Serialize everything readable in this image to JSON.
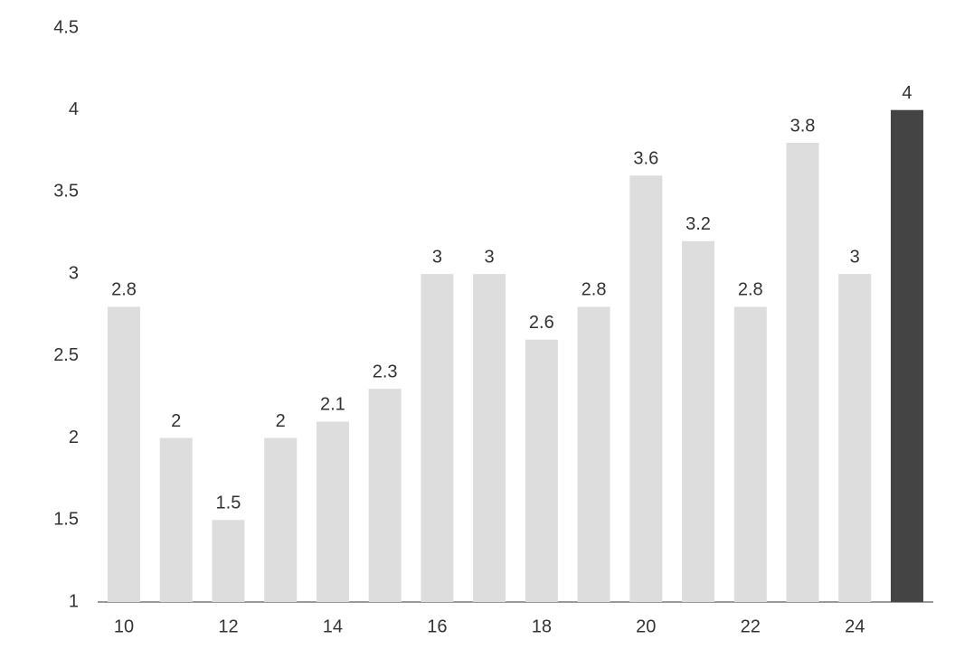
{
  "chart_data": {
    "type": "bar",
    "categories": [
      10,
      null,
      12,
      null,
      14,
      null,
      16,
      null,
      18,
      null,
      20,
      null,
      22,
      null,
      24,
      null
    ],
    "values": [
      2.8,
      2,
      1.5,
      2,
      2.1,
      2.3,
      3,
      3,
      2.6,
      2.8,
      3.6,
      3.2,
      2.8,
      3.8,
      3,
      4
    ],
    "colors": [
      "#dddddd",
      "#dddddd",
      "#dddddd",
      "#dddddd",
      "#dddddd",
      "#dddddd",
      "#dddddd",
      "#dddddd",
      "#dddddd",
      "#dddddd",
      "#dddddd",
      "#dddddd",
      "#dddddd",
      "#dddddd",
      "#dddddd",
      "#444444"
    ],
    "ylim": [
      1,
      4.5
    ],
    "yticks": [
      1,
      1.5,
      2,
      2.5,
      3,
      3.5,
      4,
      4.5
    ],
    "grid": false
  }
}
